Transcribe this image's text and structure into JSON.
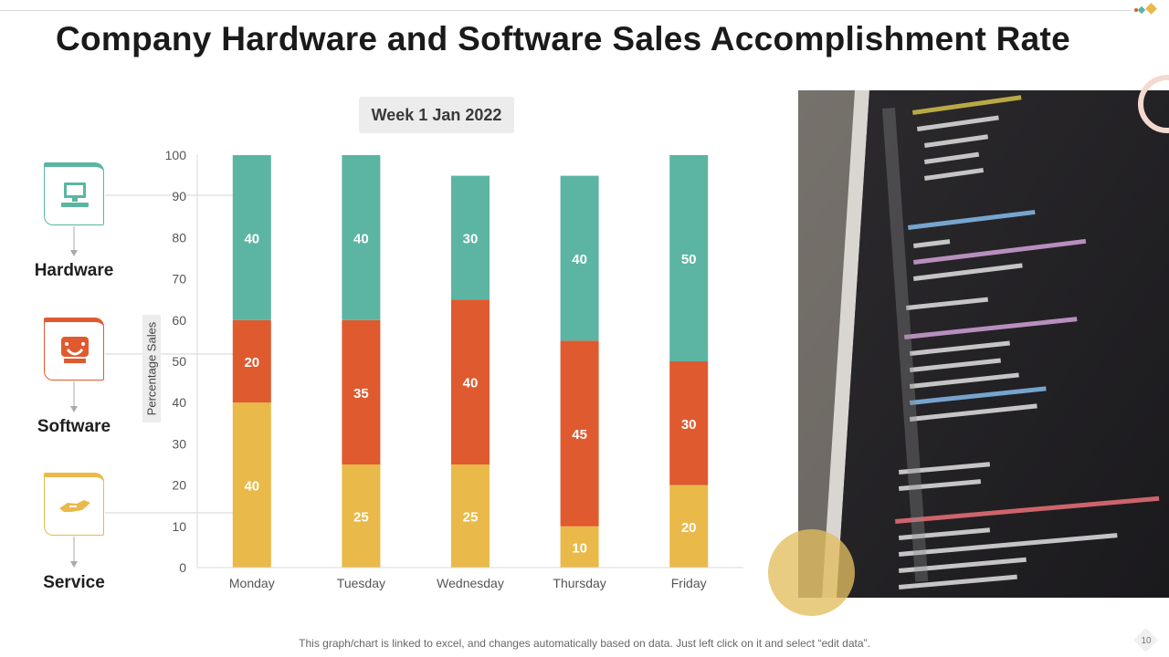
{
  "slide": {
    "title": "Company Hardware and Software Sales Accomplishment Rate",
    "footnote": "This graph/chart is linked to excel, and changes automatically based on data. Just left click on it and select “edit data”.",
    "page_number": "10"
  },
  "categories_panel": [
    {
      "label": "Hardware",
      "icon": "computer-icon",
      "color": "#5bb5a2"
    },
    {
      "label": "Software",
      "icon": "software-icon",
      "color": "#e05a2f"
    },
    {
      "label": "Service",
      "icon": "handshake-icon",
      "color": "#e9b949"
    }
  ],
  "photo": {
    "subject": "laptop-code-photo"
  },
  "chart_data": {
    "type": "bar",
    "stacked": true,
    "title": "Week 1 Jan 2022",
    "xlabel": "",
    "ylabel": "Percentage Sales",
    "ylim": [
      0,
      100
    ],
    "yticks": [
      0,
      10,
      20,
      30,
      40,
      50,
      60,
      70,
      80,
      90,
      100
    ],
    "categories": [
      "Monday",
      "Tuesday",
      "Wednesday",
      "Thursday",
      "Friday"
    ],
    "series": [
      {
        "name": "Service",
        "color": "#e9b949",
        "values": [
          40,
          25,
          25,
          10,
          20
        ]
      },
      {
        "name": "Software",
        "color": "#e05a2f",
        "values": [
          20,
          35,
          40,
          45,
          30
        ]
      },
      {
        "name": "Hardware",
        "color": "#5bb5a2",
        "values": [
          40,
          40,
          30,
          40,
          50
        ]
      }
    ],
    "data_labels": true,
    "legend": "left"
  }
}
